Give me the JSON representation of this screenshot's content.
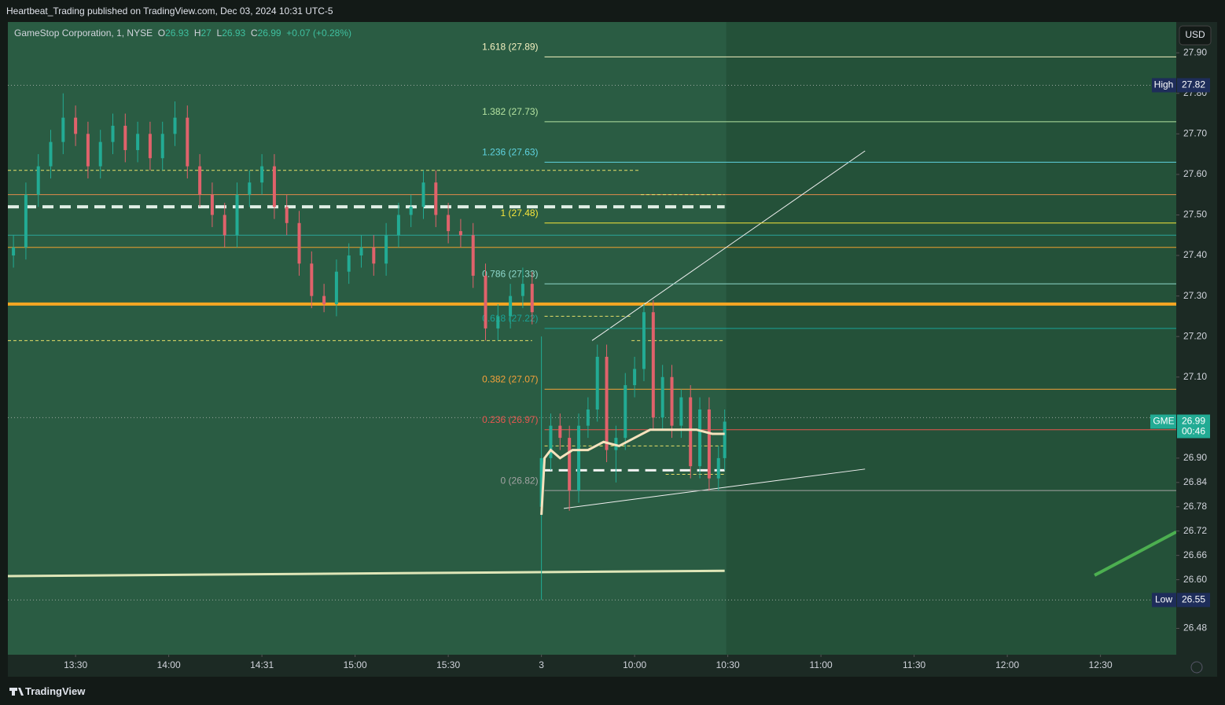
{
  "header": {
    "title": "Heartbeat_Trading published on TradingView.com, Dec 03, 2024 10:31 UTC-5"
  },
  "footer": {
    "brand": "TradingView"
  },
  "chart_data": {
    "type": "candlestick",
    "legend": {
      "symbol": "GameStop Corporation, 1, NYSE",
      "o_label": "O",
      "open": 26.93,
      "h_label": "H",
      "high": 27.0,
      "l_label": "L",
      "low": 26.93,
      "c_label": "C",
      "close": 26.99,
      "change": "+0.07 (+0.28%)"
    },
    "currency": "USD",
    "up_color": "#22ab94",
    "down_color": "#e0626b",
    "x": [
      -20,
      -16,
      -12,
      -8,
      -4,
      0,
      4,
      8,
      12,
      16,
      20,
      24,
      28,
      32,
      36,
      40,
      44,
      48,
      52,
      56,
      60,
      64,
      68,
      72,
      76,
      80,
      84,
      88,
      92,
      96,
      100,
      104,
      108,
      112,
      116,
      120,
      124,
      128,
      132,
      136,
      140,
      144,
      147,
      150,
      153,
      156,
      159,
      162,
      165,
      168,
      171,
      174,
      177,
      180,
      183,
      186,
      189,
      192,
      195,
      198,
      201,
      204,
      207,
      209
    ],
    "open": [
      27.4,
      27.42,
      27.55,
      27.62,
      27.68,
      27.74,
      27.7,
      27.62,
      27.68,
      27.72,
      27.66,
      27.7,
      27.64,
      27.7,
      27.74,
      27.62,
      27.55,
      27.5,
      27.45,
      27.55,
      27.58,
      27.62,
      27.52,
      27.48,
      27.38,
      27.3,
      27.28,
      27.36,
      27.4,
      27.42,
      27.38,
      27.45,
      27.5,
      27.52,
      27.58,
      27.5,
      27.46,
      27.45,
      27.35,
      27.22,
      27.25,
      27.3,
      27.33,
      26.78,
      26.9,
      26.98,
      26.95,
      26.82,
      26.98,
      27.02,
      27.15,
      26.92,
      26.95,
      27.08,
      27.12,
      27.26,
      27.0,
      27.1,
      26.98,
      27.05,
      26.88,
      27.02,
      26.85,
      26.9
    ],
    "high": [
      27.45,
      27.58,
      27.65,
      27.71,
      27.8,
      27.77,
      27.73,
      27.71,
      27.75,
      27.75,
      27.73,
      27.73,
      27.73,
      27.78,
      27.77,
      27.65,
      27.58,
      27.53,
      27.58,
      27.61,
      27.65,
      27.65,
      27.55,
      27.51,
      27.41,
      27.33,
      27.39,
      27.43,
      27.45,
      27.45,
      27.48,
      27.53,
      27.55,
      27.61,
      27.61,
      27.53,
      27.49,
      27.48,
      27.38,
      27.28,
      27.33,
      27.37,
      27.36,
      27.2,
      27.01,
      27.01,
      26.98,
      27.01,
      27.05,
      27.18,
      27.18,
      26.98,
      27.11,
      27.15,
      27.28,
      27.29,
      27.13,
      27.13,
      27.07,
      27.08,
      27.05,
      27.05,
      26.93,
      27.02
    ],
    "low": [
      27.37,
      27.39,
      27.52,
      27.59,
      27.65,
      27.67,
      27.59,
      27.59,
      27.65,
      27.63,
      27.63,
      27.61,
      27.61,
      27.67,
      27.59,
      27.52,
      27.47,
      27.42,
      27.42,
      27.52,
      27.55,
      27.49,
      27.45,
      27.35,
      27.27,
      27.26,
      27.25,
      27.33,
      27.37,
      27.35,
      27.35,
      27.42,
      27.47,
      27.49,
      27.47,
      27.43,
      27.42,
      27.32,
      27.19,
      27.19,
      27.22,
      27.27,
      27.23,
      26.55,
      26.87,
      26.92,
      26.77,
      26.79,
      26.95,
      26.99,
      26.89,
      26.84,
      26.92,
      27.05,
      27.09,
      26.97,
      26.97,
      26.95,
      26.95,
      26.85,
      26.85,
      26.82,
      26.82,
      26.87
    ],
    "close": [
      27.42,
      27.55,
      27.62,
      27.68,
      27.74,
      27.7,
      27.62,
      27.68,
      27.72,
      27.66,
      27.7,
      27.64,
      27.7,
      27.74,
      27.62,
      27.55,
      27.5,
      27.45,
      27.55,
      27.58,
      27.62,
      27.52,
      27.48,
      27.38,
      27.3,
      27.28,
      27.36,
      27.4,
      27.42,
      27.38,
      27.45,
      27.5,
      27.52,
      27.58,
      27.5,
      27.46,
      27.45,
      27.35,
      27.22,
      27.25,
      27.3,
      27.33,
      27.26,
      26.9,
      26.98,
      26.95,
      26.82,
      26.98,
      27.02,
      27.15,
      26.92,
      26.95,
      27.08,
      27.12,
      27.26,
      27.0,
      27.1,
      26.98,
      27.05,
      26.88,
      27.02,
      26.85,
      26.9,
      26.99
    ],
    "xlim": [
      -21.8,
      354.4
    ],
    "xticks": [
      {
        "value": 0,
        "label": "13:30"
      },
      {
        "value": 30,
        "label": "14:00"
      },
      {
        "value": 60,
        "label": "14:31"
      },
      {
        "value": 90,
        "label": "15:00"
      },
      {
        "value": 120,
        "label": "15:30"
      },
      {
        "value": 150,
        "label": "3"
      },
      {
        "value": 180,
        "label": "10:00"
      },
      {
        "value": 210,
        "label": "10:30"
      },
      {
        "value": 240,
        "label": "11:00"
      },
      {
        "value": 270,
        "label": "11:30"
      },
      {
        "value": 300,
        "label": "12:00"
      },
      {
        "value": 330,
        "label": "12:30"
      }
    ],
    "ylim": [
      26.415,
      27.976
    ],
    "yticks": [
      {
        "value": 27.9,
        "label": "27.90"
      },
      {
        "value": 27.8,
        "label": "27.80"
      },
      {
        "value": 27.7,
        "label": "27.70"
      },
      {
        "value": 27.6,
        "label": "27.60"
      },
      {
        "value": 27.5,
        "label": "27.50"
      },
      {
        "value": 27.4,
        "label": "27.40"
      },
      {
        "value": 27.3,
        "label": "27.30"
      },
      {
        "value": 27.2,
        "label": "27.20"
      },
      {
        "value": 27.1,
        "label": "27.10"
      },
      {
        "value": 26.9,
        "label": "26.90"
      },
      26.84,
      26.78,
      26.72,
      26.66,
      {
        "value": 26.6,
        "label": "26.60"
      },
      26.48
    ],
    "fib_start": 151,
    "fib_levels": [
      {
        "price": 27.89,
        "label": "1.618 (27.89)",
        "color": "#f4f1c0"
      },
      {
        "price": 27.73,
        "label": "1.382 (27.73)",
        "color": "#b5e3a1"
      },
      {
        "price": 27.63,
        "label": "1.236 (27.63)",
        "color": "#5fd3e0"
      },
      {
        "price": 27.48,
        "label": "1 (27.48)",
        "color": "#f7e53b"
      },
      {
        "price": 27.33,
        "label": "0.786 (27.33)",
        "color": "#8fd8cc"
      },
      {
        "price": 27.22,
        "label": "0.618 (27.22)",
        "color": "#1aa397"
      },
      {
        "price": 27.07,
        "label": "0.382 (27.07)",
        "color": "#f5a13a"
      },
      {
        "price": 26.97,
        "label": "0.236 (26.97)",
        "color": "#e8574f"
      },
      {
        "price": 26.82,
        "label": "0 (26.82)",
        "color": "#a3a3a3"
      }
    ],
    "hlines": [
      {
        "price": 27.82,
        "color": "#9aa8a0",
        "width": 1,
        "style": "dotted"
      },
      {
        "price": 27.55,
        "color": "#e08a4a",
        "width": 1,
        "style": "solid"
      },
      {
        "price": 27.45,
        "color": "#2aa39a",
        "width": 1,
        "style": "solid"
      },
      {
        "price": 27.42,
        "color": "#f0a030",
        "width": 1,
        "style": "solid"
      },
      {
        "price": 27.28,
        "color": "#f5a623",
        "width": 4,
        "style": "solid"
      },
      {
        "price": 27.0,
        "color": "#9aa8a0",
        "width": 1,
        "style": "dotted"
      },
      {
        "price": 26.55,
        "color": "#9aa8a0",
        "width": 1,
        "style": "dotted"
      }
    ],
    "segments": [
      {
        "x": [
          -21.8,
          182
        ],
        "y": [
          27.61,
          27.61
        ],
        "color": "#e8e06a",
        "width": 1,
        "style": "dashed"
      },
      {
        "x": [
          182,
          209
        ],
        "y": [
          27.55,
          27.55
        ],
        "color": "#e8e06a",
        "width": 1,
        "style": "dashed"
      },
      {
        "x": [
          -21.8,
          147
        ],
        "y": [
          27.19,
          27.19
        ],
        "color": "#e8e06a",
        "width": 1,
        "style": "dashed"
      },
      {
        "x": [
          151,
          179
        ],
        "y": [
          27.25,
          27.25
        ],
        "color": "#e8e06a",
        "width": 1,
        "style": "dashed"
      },
      {
        "x": [
          179,
          209
        ],
        "y": [
          27.19,
          27.19
        ],
        "color": "#e8e06a",
        "width": 1,
        "style": "dashed"
      },
      {
        "x": [
          151,
          209
        ],
        "y": [
          26.93,
          26.93
        ],
        "color": "#e8e06a",
        "width": 1,
        "style": "dashed"
      },
      {
        "x": [
          190,
          209
        ],
        "y": [
          26.86,
          26.86
        ],
        "color": "#e8e06a",
        "width": 1,
        "style": "dashed"
      },
      {
        "x": [
          -21.8,
          209
        ],
        "y": [
          27.52,
          27.52
        ],
        "color": "#dfeee4",
        "width": 4,
        "style": "wide"
      },
      {
        "x": [
          150,
          209
        ],
        "y": [
          26.87,
          26.87
        ],
        "color": "#f2f2f2",
        "width": 3,
        "style": "wide"
      },
      {
        "x": [
          -21.8,
          209
        ],
        "y": [
          26.609,
          26.622
        ],
        "color": "#dfe6b8",
        "width": 3,
        "style": "solid"
      },
      {
        "x": [
          166.3,
          254.2
        ],
        "y": [
          27.19,
          27.658
        ],
        "color": "#f0f0f0",
        "width": 1,
        "style": "solid"
      },
      {
        "x": [
          157.2,
          254.2
        ],
        "y": [
          26.776,
          26.873
        ],
        "color": "#f0f0f0",
        "width": 1,
        "style": "solid"
      },
      {
        "x": [
          328.1,
          354.4
        ],
        "y": [
          26.611,
          26.718
        ],
        "color": "#4caf50",
        "width": 4,
        "style": "solid"
      }
    ],
    "vwap": {
      "color": "#f6e2bd",
      "x": [
        150,
        151,
        153,
        156,
        160,
        165,
        170,
        175,
        180,
        185,
        190,
        200,
        205,
        209
      ],
      "values": [
        26.76,
        26.9,
        26.92,
        26.9,
        26.92,
        26.92,
        26.94,
        26.93,
        26.95,
        26.97,
        26.97,
        26.97,
        26.96,
        26.96
      ]
    },
    "price_badges": [
      {
        "label": "High",
        "value": 27.82,
        "color": "#1e2d5a"
      },
      {
        "label": "Low",
        "value": 26.55,
        "color": "#1e2d5a"
      }
    ],
    "last_price": {
      "symbol": "GME",
      "value": 26.99,
      "countdown": "00:46",
      "color": "#22ab94"
    }
  }
}
